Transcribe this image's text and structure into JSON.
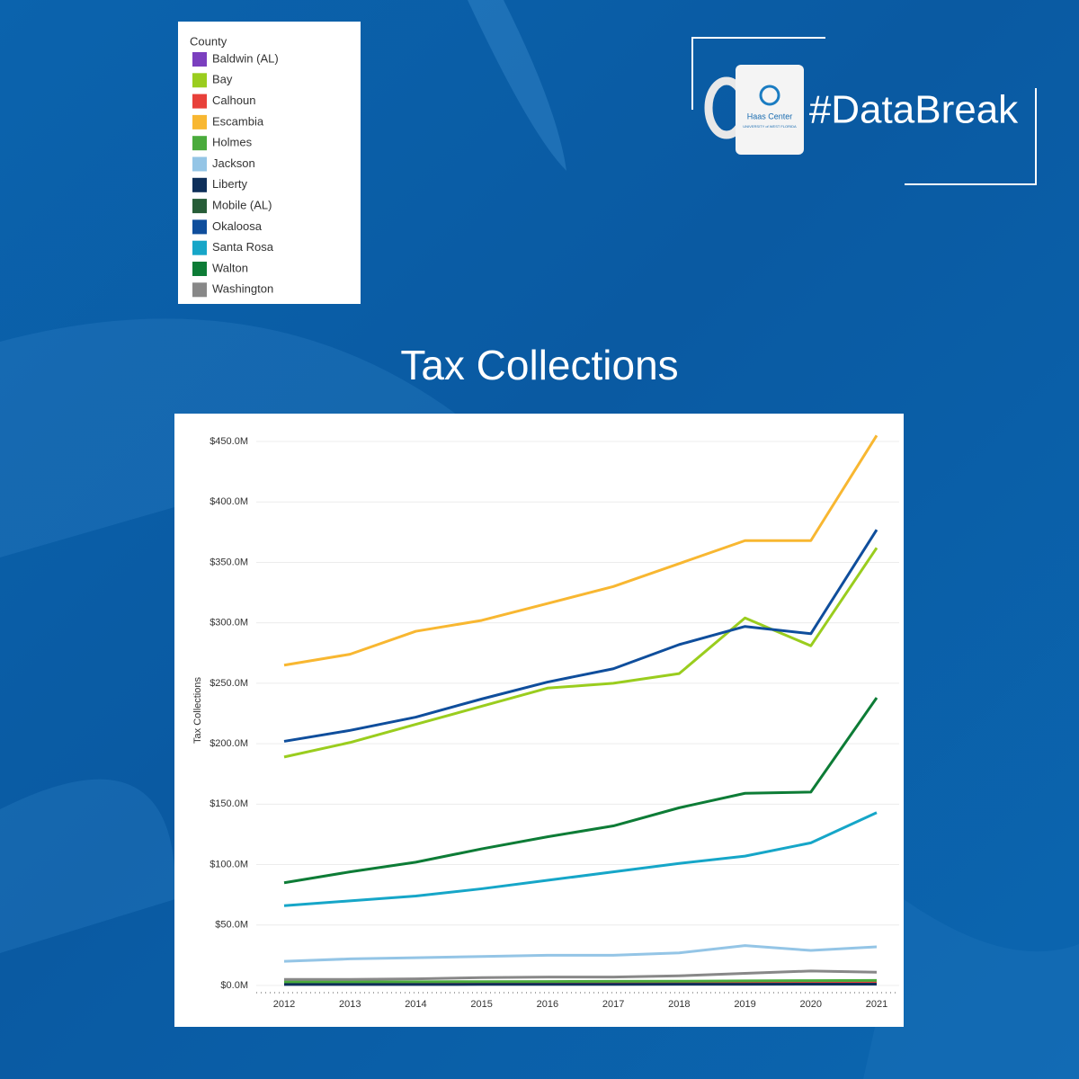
{
  "branding": {
    "hashtag": "#DataBreak",
    "center": "Haas Center",
    "university": "UNIVERSITY of WEST FLORIDA"
  },
  "chart_data": {
    "type": "line",
    "title": "Tax Collections",
    "y_label": "Tax Collections",
    "legend_title": "County",
    "legend_position": "top-left",
    "grid": true,
    "x": [
      2012,
      2013,
      2014,
      2015,
      2016,
      2017,
      2018,
      2019,
      2020,
      2021
    ],
    "ylim": [
      0,
      450
    ],
    "yticks": [
      {
        "value": 0,
        "label": "$0.0M"
      },
      {
        "value": 50,
        "label": "$50.0M"
      },
      {
        "value": 100,
        "label": "$100.0M"
      },
      {
        "value": 150,
        "label": "$150.0M"
      },
      {
        "value": 200,
        "label": "$200.0M"
      },
      {
        "value": 250,
        "label": "$250.0M"
      },
      {
        "value": 300,
        "label": "$300.0M"
      },
      {
        "value": 350,
        "label": "$350.0M"
      },
      {
        "value": 400,
        "label": "$400.0M"
      },
      {
        "value": 450,
        "label": "$450.0M"
      }
    ],
    "series": [
      {
        "name": "Baldwin (AL)",
        "color": "#7b3fbf",
        "values": [
          null,
          null,
          null,
          null,
          null,
          null,
          null,
          null,
          null,
          null
        ]
      },
      {
        "name": "Bay",
        "color": "#9acd1e",
        "values": [
          189,
          201,
          216,
          231,
          246,
          250,
          258,
          304,
          281,
          362
        ]
      },
      {
        "name": "Calhoun",
        "color": "#e8403a",
        "values": [
          1.5,
          1.5,
          1.6,
          1.7,
          1.8,
          1.8,
          1.9,
          2,
          2.1,
          2.2
        ]
      },
      {
        "name": "Escambia",
        "color": "#f8b731",
        "values": [
          265,
          274,
          293,
          302,
          316,
          330,
          349,
          368,
          368,
          455
        ]
      },
      {
        "name": "Holmes",
        "color": "#4aab3c",
        "values": [
          3,
          3,
          3.1,
          3.2,
          3.3,
          3.4,
          3.5,
          3.8,
          4,
          4.2
        ]
      },
      {
        "name": "Jackson",
        "color": "#94c5e6",
        "values": [
          20,
          22,
          23,
          24,
          25,
          25,
          27,
          33,
          29,
          32
        ]
      },
      {
        "name": "Liberty",
        "color": "#0e2f5a",
        "values": [
          0.8,
          0.8,
          0.8,
          0.9,
          0.9,
          0.9,
          1,
          1,
          1.1,
          1.1
        ]
      },
      {
        "name": "Mobile (AL)",
        "color": "#275d38",
        "values": [
          null,
          null,
          null,
          null,
          null,
          null,
          null,
          null,
          null,
          null
        ]
      },
      {
        "name": "Okaloosa",
        "color": "#0f4e9c",
        "values": [
          202,
          211,
          222,
          237,
          251,
          262,
          282,
          297,
          291,
          377
        ]
      },
      {
        "name": "Santa Rosa",
        "color": "#16a6c8",
        "values": [
          66,
          70,
          74,
          80,
          87,
          94,
          101,
          107,
          118,
          143
        ]
      },
      {
        "name": "Walton",
        "color": "#0d7c36",
        "values": [
          85,
          94,
          102,
          113,
          123,
          132,
          147,
          159,
          160,
          238
        ]
      },
      {
        "name": "Washington",
        "color": "#888888",
        "values": [
          5,
          5,
          5.5,
          6.5,
          7,
          7,
          8,
          10,
          12,
          11
        ]
      }
    ]
  }
}
